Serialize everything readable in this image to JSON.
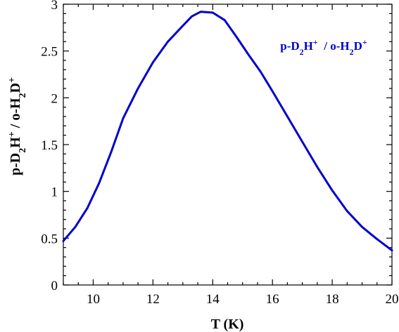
{
  "chart_data": {
    "type": "line",
    "xlabel": {
      "main": "T (K)"
    },
    "ylabel": {
      "parts": [
        "p-D",
        "2",
        "H",
        "+",
        " / o-H",
        "2",
        "D",
        "+"
      ]
    },
    "annotation": {
      "parts": [
        "p-D",
        "2",
        "H",
        "+",
        "  / o-H",
        "2",
        "D",
        "+"
      ],
      "position": "top-right"
    },
    "xlim": [
      9,
      20
    ],
    "ylim": [
      0,
      3
    ],
    "x_ticks": [
      10,
      12,
      14,
      16,
      18,
      20
    ],
    "x_tick_labels": [
      "10",
      "12",
      "14",
      "16",
      "18",
      "20"
    ],
    "y_ticks": [
      0,
      0.5,
      1,
      1.5,
      2,
      2.5,
      3
    ],
    "y_tick_labels": [
      "0",
      "0.5",
      "1",
      "1.5",
      "2",
      "2.5",
      "3"
    ],
    "grid": false,
    "line_color": "#0000cc",
    "series": [
      {
        "x": [
          9.0,
          9.4,
          9.8,
          10.2,
          10.6,
          11.0,
          11.5,
          12.0,
          12.5,
          13.0,
          13.3,
          13.6,
          14.0,
          14.4,
          14.8,
          15.2,
          15.6,
          16.0,
          16.5,
          17.0,
          17.5,
          18.0,
          18.5,
          19.0,
          19.5,
          20.0
        ],
        "y": [
          0.47,
          0.62,
          0.82,
          1.09,
          1.42,
          1.78,
          2.1,
          2.38,
          2.6,
          2.77,
          2.87,
          2.92,
          2.91,
          2.83,
          2.65,
          2.46,
          2.28,
          2.07,
          1.8,
          1.53,
          1.26,
          1.01,
          0.79,
          0.62,
          0.49,
          0.37
        ]
      }
    ]
  }
}
